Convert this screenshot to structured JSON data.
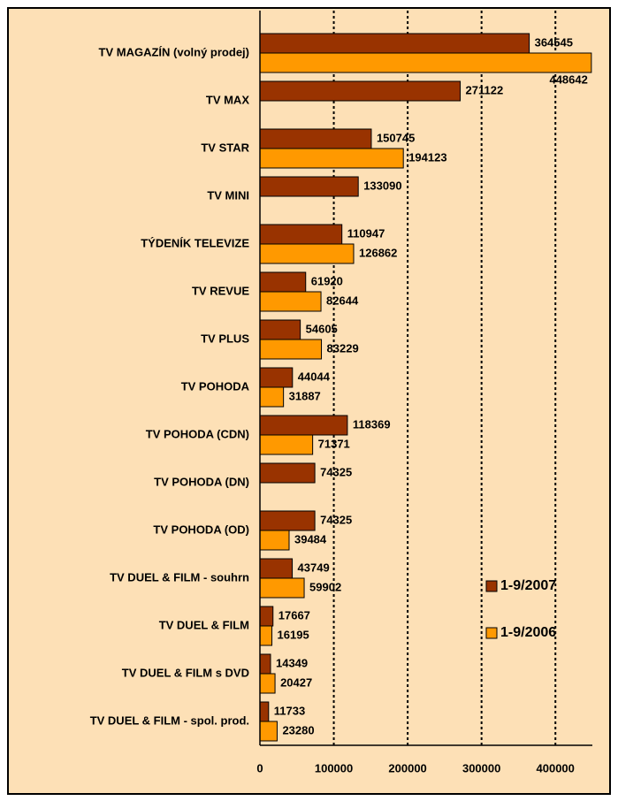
{
  "chart_data": {
    "type": "bar",
    "orientation": "horizontal",
    "categories": [
      "TV MAGAZÍN (volný prodej)",
      "TV MAX",
      "TV STAR",
      "TV MINI",
      "TÝDENÍK TELEVIZE",
      "TV REVUE",
      "TV PLUS",
      "TV POHODA",
      "TV POHODA (CDN)",
      "TV POHODA (DN)",
      "TV POHODA (OD)",
      "TV DUEL & FILM - souhrn",
      "TV DUEL & FILM",
      "TV DUEL & FILM s DVD",
      "TV DUEL & FILM - spol. prod."
    ],
    "series": [
      {
        "name": "1-9/2007",
        "color": "#993300",
        "values": [
          364545,
          271122,
          150745,
          133090,
          110947,
          61920,
          54605,
          44044,
          118369,
          74325,
          74325,
          43749,
          17667,
          14349,
          11733
        ]
      },
      {
        "name": "1-9/2006",
        "color": "#ff9900",
        "values": [
          448642,
          null,
          194123,
          null,
          126862,
          82644,
          83229,
          31887,
          71371,
          null,
          39484,
          59902,
          16195,
          20427,
          23280
        ]
      }
    ],
    "xlim": [
      0,
      450000
    ],
    "xticks": [
      0,
      100000,
      200000,
      300000,
      400000
    ],
    "grid": true,
    "legend": "right"
  }
}
